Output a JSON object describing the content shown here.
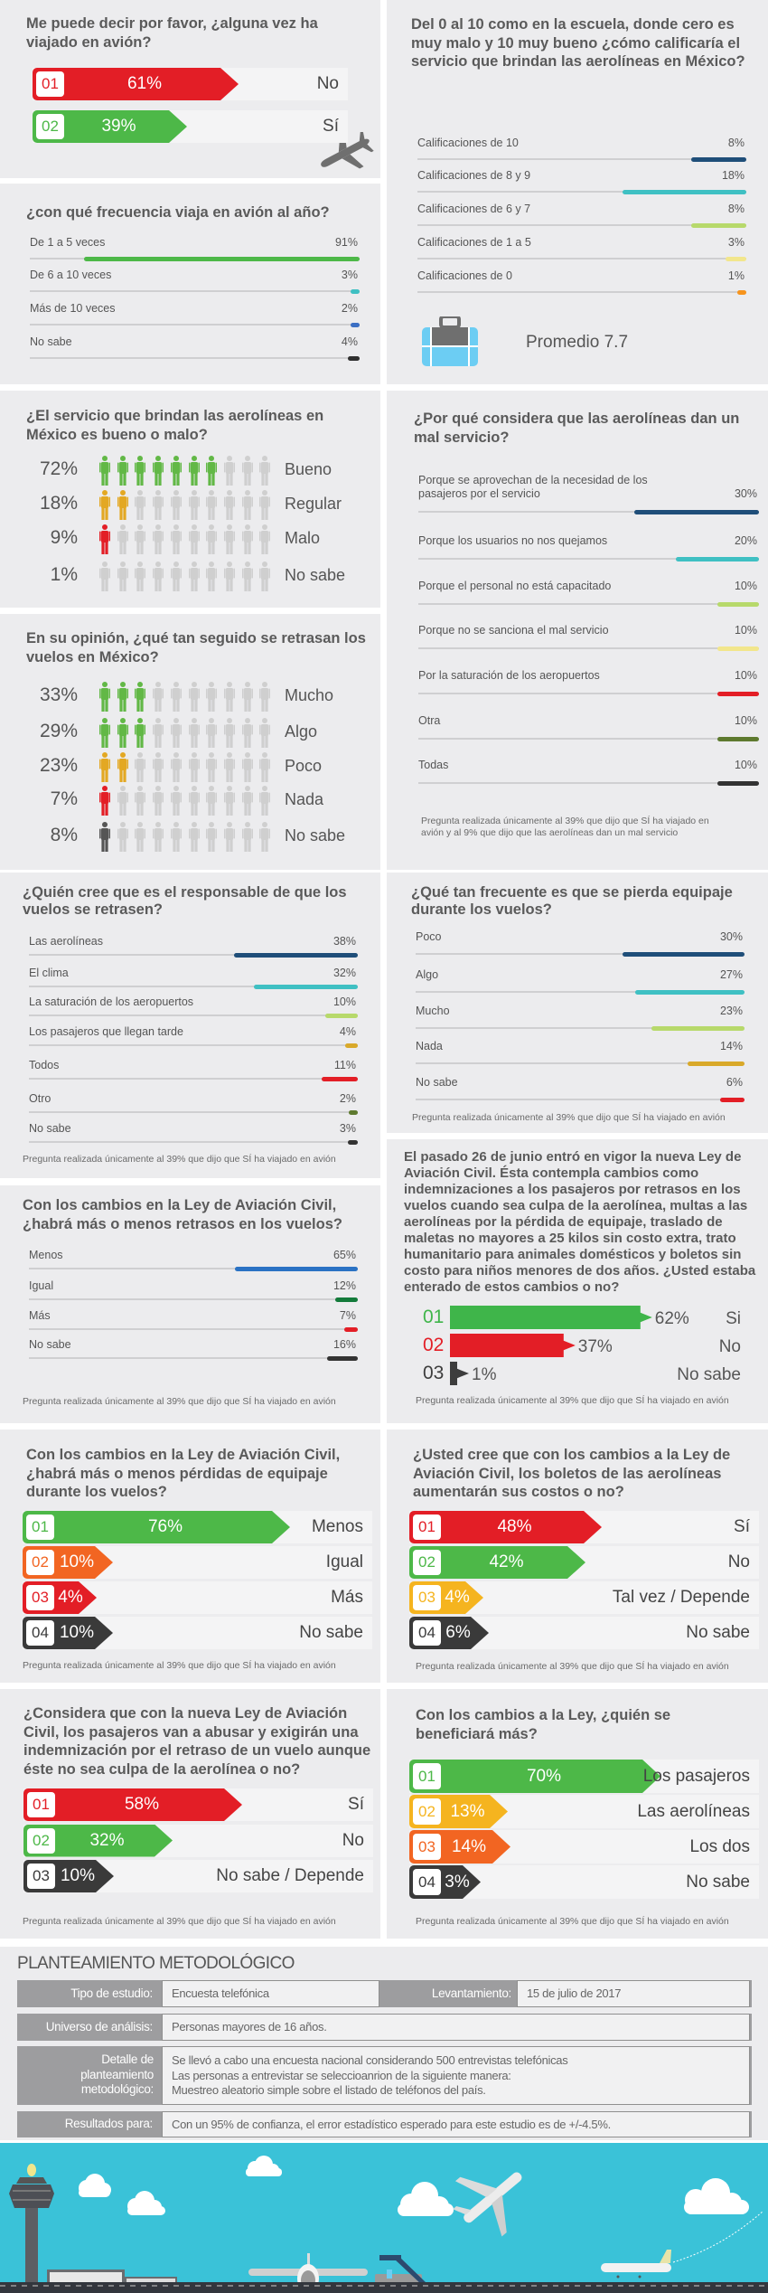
{
  "q_flown": {
    "title": "Me puede decir por favor, ¿alguna vez ha viajado en avión?",
    "icon": "airplane-icon",
    "options": [
      {
        "num": "01",
        "pct": "61%",
        "value": 61,
        "label": "No",
        "color": "#e31e26"
      },
      {
        "num": "02",
        "pct": "39%",
        "value": 39,
        "label": "Sí",
        "color": "#4db848"
      }
    ]
  },
  "q_frequency": {
    "title": "¿con qué frecuencia viaja en avión al año?",
    "rows": [
      {
        "label": "De 1 a 5 veces",
        "pct": "91%",
        "value": 91,
        "color": "#4db848"
      },
      {
        "label": "De 6 a 10 veces",
        "pct": "3%",
        "value": 3,
        "color": "#3fc0c3"
      },
      {
        "label": "Más de 10 veces",
        "pct": "2%",
        "value": 2,
        "color": "#3b6fc4"
      },
      {
        "label": "No sabe",
        "pct": "4%",
        "value": 4,
        "color": "#2f2f2f"
      }
    ]
  },
  "q_rating": {
    "title": "Del 0 al 10 como en la escuela, donde cero es muy malo y 10 muy bueno ¿cómo calificaría el servicio que brindan las aerolíneas en México?",
    "rows": [
      {
        "label": "Calificaciones de 10",
        "pct": "8%",
        "value": 8,
        "color": "#1f4e79"
      },
      {
        "label": "Calificaciones de 8 y 9",
        "pct": "18%",
        "value": 18,
        "color": "#3fc0c3"
      },
      {
        "label": "Calificaciones de 6 y 7",
        "pct": "8%",
        "value": 8,
        "color": "#b7d96b"
      },
      {
        "label": "Calificaciones de 1 a 5",
        "pct": "3%",
        "value": 3,
        "color": "#f2e68c"
      },
      {
        "label": "Calificaciones de 0",
        "pct": "1%",
        "value": 1,
        "color": "#f7941d"
      }
    ],
    "icon": "suitcase-icon",
    "average": "Promedio 7.7"
  },
  "q_service": {
    "title": "¿El servicio que brindan las aerolíneas en México es bueno o malo?",
    "rows": [
      {
        "pct": "72%",
        "value": 72,
        "label": "Bueno",
        "color": "#62b846"
      },
      {
        "pct": "18%",
        "value": 18,
        "label": "Regular",
        "color": "#e3a823"
      },
      {
        "pct": "9%",
        "value": 9,
        "label": "Malo",
        "color": "#e31e26"
      },
      {
        "pct": "1%",
        "value": 1,
        "label": "No sabe",
        "color": "#cfcfcf"
      }
    ]
  },
  "q_delays_often": {
    "title": "En su opinión, ¿qué tan seguido se retrasan los vuelos en México?",
    "rows": [
      {
        "pct": "33%",
        "value": 33,
        "label": "Mucho",
        "color": "#62b846"
      },
      {
        "pct": "29%",
        "value": 29,
        "label": "Algo",
        "color": "#62b846"
      },
      {
        "pct": "23%",
        "value": 23,
        "label": "Poco",
        "color": "#e3a823"
      },
      {
        "pct": "7%",
        "value": 7,
        "label": "Nada",
        "color": "#e31e26"
      },
      {
        "pct": "8%",
        "value": 8,
        "label": "No sabe",
        "color": "#555555"
      }
    ]
  },
  "q_bad_service": {
    "title": "¿Por qué considera que las aerolíneas dan un mal servicio?",
    "rows": [
      {
        "label": "Porque se aprovechan de la necesidad de los pasajeros por el servicio",
        "pct": "30%",
        "value": 30,
        "color": "#1f4e79"
      },
      {
        "label": "Porque los usuarios no nos quejamos",
        "pct": "20%",
        "value": 20,
        "color": "#3fc0c3"
      },
      {
        "label": "Porque el personal no está capacitado",
        "pct": "10%",
        "value": 10,
        "color": "#b7d96b"
      },
      {
        "label": "Porque no se sanciona el mal servicio",
        "pct": "10%",
        "value": 10,
        "color": "#f2e68c"
      },
      {
        "label": "Por la saturación de los aeropuertos",
        "pct": "10%",
        "value": 10,
        "color": "#e31e26"
      },
      {
        "label": "Otra",
        "pct": "10%",
        "value": 10,
        "color": "#5e7a2f"
      },
      {
        "label": "Todas",
        "pct": "10%",
        "value": 10,
        "color": "#333333"
      }
    ],
    "note": "Pregunta realizada únicamente al 39% que dijo que SÍ ha viajado en avión y al 9% que dijo que las aerolíneas dan un mal servicio"
  },
  "q_responsible": {
    "title": "¿Quién cree que es el responsable de que los vuelos se retrasen?",
    "rows": [
      {
        "label": "Las aerolíneas",
        "pct": "38%",
        "value": 38,
        "color": "#1f4e79"
      },
      {
        "label": "El clima",
        "pct": "32%",
        "value": 32,
        "color": "#3fc0c3"
      },
      {
        "label": "La saturación de los aeropuertos",
        "pct": "10%",
        "value": 10,
        "color": "#b7d96b"
      },
      {
        "label": "Los pasajeros que llegan tarde",
        "pct": "4%",
        "value": 4,
        "color": "#d9a92a"
      },
      {
        "label": "Todos",
        "pct": "11%",
        "value": 11,
        "color": "#e31e26"
      },
      {
        "label": "Otro",
        "pct": "2%",
        "value": 2,
        "color": "#5e7a2f"
      },
      {
        "label": "No sabe",
        "pct": "3%",
        "value": 3,
        "color": "#333333"
      }
    ],
    "note": "Pregunta realizada únicamente al 39% que dijo que SÍ ha viajado en avión"
  },
  "q_lost_luggage": {
    "title": "¿Qué tan frecuente es que se pierda equipaje durante los vuelos?",
    "rows": [
      {
        "label": "Poco",
        "pct": "30%",
        "value": 30,
        "color": "#1f4e79"
      },
      {
        "label": "Algo",
        "pct": "27%",
        "value": 27,
        "color": "#3fc0c3"
      },
      {
        "label": "Mucho",
        "pct": "23%",
        "value": 23,
        "color": "#b7d96b"
      },
      {
        "label": "Nada",
        "pct": "14%",
        "value": 14,
        "color": "#d9a92a"
      },
      {
        "label": "No sabe",
        "pct": "6%",
        "value": 6,
        "color": "#e31e26"
      }
    ],
    "note": "Pregunta realizada únicamente al 39% que dijo que SÍ ha viajado en avión"
  },
  "q_more_delays": {
    "title": "Con los cambios en la Ley de Aviación Civil, ¿habrá más o menos retrasos en los vuelos?",
    "rows": [
      {
        "label": "Menos",
        "pct": "65%",
        "value": 65,
        "color": "#2a72c4"
      },
      {
        "label": "Igual",
        "pct": "12%",
        "value": 12,
        "color": "#137a3a"
      },
      {
        "label": "Más",
        "pct": "7%",
        "value": 7,
        "color": "#e31e26"
      },
      {
        "label": "No sabe",
        "pct": "16%",
        "value": 16,
        "color": "#333333"
      }
    ],
    "note": "Pregunta realizada únicamente al 39% que dijo que SÍ ha viajado en avión"
  },
  "q_law_aware": {
    "title": "El pasado 26 de junio entró en vigor la nueva Ley de Aviación Civil. Ésta contempla cambios como indemnizaciones a los pasajeros por retrasos en los vuelos cuando sea culpa de la aerolínea, multas a las aerolíneas por la pérdida de equipaje, traslado de maletas no mayores a 25 kilos sin costo extra, trato humanitario para animales domésticos y boletos sin costo para niños menores de dos años. ¿Usted estaba enterado de estos cambios o no?",
    "options": [
      {
        "num": "01",
        "pct": "62%",
        "value": 62,
        "label": "Si",
        "color": "#3fb54a"
      },
      {
        "num": "02",
        "pct": "37%",
        "value": 37,
        "label": "No",
        "color": "#e31e26"
      },
      {
        "num": "03",
        "pct": "1%",
        "value": 1,
        "label": "No sabe",
        "color": "#3d3d3d"
      }
    ],
    "note": "Pregunta realizada únicamente al 39% que dijo que SÍ ha viajado en avión"
  },
  "q_lost_change": {
    "title": "Con los cambios en la Ley de Aviación Civil, ¿habrá más o menos pérdidas de equipaje durante los vuelos?",
    "options": [
      {
        "num": "01",
        "pct": "76%",
        "value": 76,
        "label": "Menos",
        "color": "#4db848"
      },
      {
        "num": "02",
        "pct": "10%",
        "value": 10,
        "label": "Igual",
        "color": "#f26522"
      },
      {
        "num": "03",
        "pct": "4%",
        "value": 4,
        "label": "Más",
        "color": "#e31e26"
      },
      {
        "num": "04",
        "pct": "10%",
        "value": 10,
        "label": "No sabe",
        "color": "#3a3a3a"
      }
    ],
    "note": "Pregunta realizada únicamente al 39% que dijo que SÍ ha viajado en avión"
  },
  "q_costs": {
    "title": "¿Usted cree que con los cambios a la Ley de Aviación Civil, los boletos de las aerolíneas aumentarán sus costos o no?",
    "options": [
      {
        "num": "01",
        "pct": "48%",
        "value": 48,
        "label": "Sí",
        "color": "#e31e26"
      },
      {
        "num": "02",
        "pct": "42%",
        "value": 42,
        "label": "No",
        "color": "#4db848"
      },
      {
        "num": "03",
        "pct": "4%",
        "value": 4,
        "label": "Tal vez / Depende",
        "color": "#f5b41f"
      },
      {
        "num": "04",
        "pct": "6%",
        "value": 6,
        "label": "No sabe",
        "color": "#3a3a3a"
      }
    ],
    "note": "Pregunta realizada únicamente al 39% que dijo que SÍ ha viajado en avión"
  },
  "q_abuse": {
    "title": "¿Considera que con la nueva Ley de Aviación Civil, los pasajeros van a abusar y exigirán una indemnización por el retraso de un vuelo aunque éste no sea culpa de la aerolínea o no?",
    "options": [
      {
        "num": "01",
        "pct": "58%",
        "value": 58,
        "label": "Sí",
        "color": "#e31e26"
      },
      {
        "num": "02",
        "pct": "32%",
        "value": 32,
        "label": "No",
        "color": "#4db848"
      },
      {
        "num": "03",
        "pct": "10%",
        "value": 10,
        "label": "No sabe / Depende",
        "color": "#3a3a3a"
      }
    ],
    "note": "Pregunta realizada únicamente al 39% que dijo que SÍ ha viajado en avión"
  },
  "q_benefit": {
    "title": "Con los cambios a la Ley, ¿quién se beneficiará más?",
    "options": [
      {
        "num": "01",
        "pct": "70%",
        "value": 70,
        "label": "Los pasajeros",
        "color": "#4db848"
      },
      {
        "num": "02",
        "pct": "13%",
        "value": 13,
        "label": "Las aerolíneas",
        "color": "#f5b41f"
      },
      {
        "num": "03",
        "pct": "14%",
        "value": 14,
        "label": "Los dos",
        "color": "#f26522"
      },
      {
        "num": "04",
        "pct": "3%",
        "value": 3,
        "label": "No sabe",
        "color": "#3a3a3a"
      }
    ],
    "note": "Pregunta realizada únicamente al 39% que dijo que SÍ ha viajado en avión"
  },
  "method": {
    "title": "PLANTEAMIENTO METODOLÓGICO",
    "study_type_label": "Tipo de estudio:",
    "study_type": "Encuesta telefónica",
    "fieldwork_label": "Levantamiento:",
    "fieldwork": "15 de julio de 2017",
    "universe_label": "Universo de análisis:",
    "universe": "Personas mayores de 16 años.",
    "detail_label": "Detalle de planteamiento metodológico:",
    "detail_lines": [
      "Se llevó a cabo una encuesta nacional considerando 500 entrevistas telefónicas",
      "Las personas a entrevistar se seleccioanrion de la siguiente manera:",
      "Muestreo aleatorio simple sobre el listado de teléfonos del país."
    ],
    "results_label": "Resultados para:",
    "results": "Con un 95% de confianza, el error estadístico esperado para este estudio es de +/-4.5%."
  },
  "colors": {
    "panel": "#ececee",
    "sky": "#3ac2d8",
    "runway": "#33363d",
    "inactive_person": "#cfcfcf"
  }
}
